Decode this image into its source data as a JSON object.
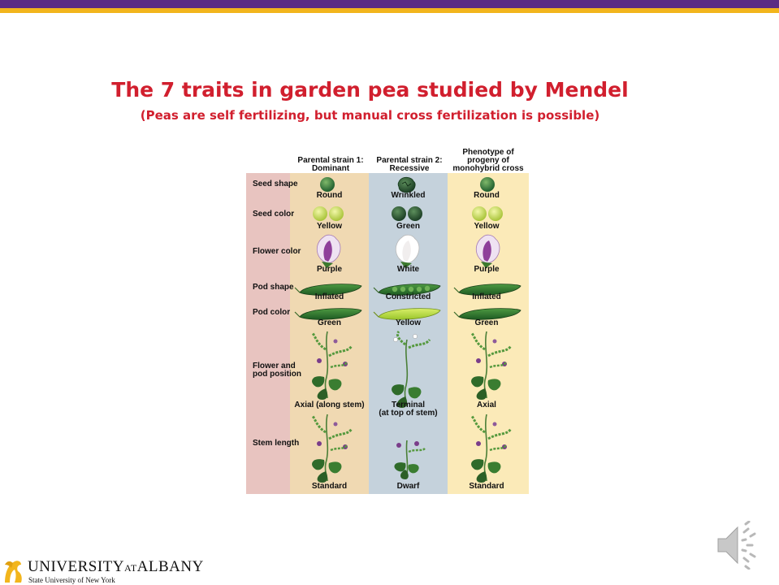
{
  "slide": {
    "title": "The 7 traits in garden pea studied by Mendel",
    "subtitle": "(Peas are self fertilizing, but manual cross fertilization is possible)"
  },
  "figure": {
    "headers": {
      "parental1": [
        "Parental strain 1:",
        "Dominant"
      ],
      "parental2": [
        "Parental strain 2:",
        "Recessive"
      ],
      "progeny": [
        "Phenotype of",
        "progeny of",
        "monohybrid cross"
      ]
    },
    "traits": [
      {
        "name": [
          "Seed shape"
        ],
        "dominant": [
          "Round"
        ],
        "recessive": [
          "Wrinkled"
        ],
        "progeny": [
          "Round"
        ]
      },
      {
        "name": [
          "Seed color"
        ],
        "dominant": [
          "Yellow"
        ],
        "recessive": [
          "Green"
        ],
        "progeny": [
          "Yellow"
        ]
      },
      {
        "name": [
          "Flower color"
        ],
        "dominant": [
          "Purple"
        ],
        "recessive": [
          "White"
        ],
        "progeny": [
          "Purple"
        ]
      },
      {
        "name": [
          "Pod shape"
        ],
        "dominant": [
          "Inflated"
        ],
        "recessive": [
          "Constricted"
        ],
        "progeny": [
          "Inflated"
        ]
      },
      {
        "name": [
          "Pod color"
        ],
        "dominant": [
          "Green"
        ],
        "recessive": [
          "Yellow"
        ],
        "progeny": [
          "Green"
        ]
      },
      {
        "name": [
          "Flower and",
          "pod position"
        ],
        "dominant": [
          "Axial (along stem)"
        ],
        "recessive": [
          "Terminal",
          "(at top of stem)"
        ],
        "progeny": [
          "Axial"
        ]
      },
      {
        "name": [
          "Stem length"
        ],
        "dominant": [
          "Standard"
        ],
        "recessive": [
          "Dwarf"
        ],
        "progeny": [
          "Standard"
        ]
      }
    ],
    "colors": {
      "trait_col": "#e8c4c0",
      "dominant_col": "#f0d9b2",
      "recessive_col": "#c5d2dc",
      "progeny_col": "#fbeab8"
    }
  },
  "footer": {
    "logo_main": "UNIVERSITY",
    "logo_at": "AT",
    "logo_albany": "ALBANY",
    "logo_sub": "State University of New York",
    "logo_icon": "minerva-icon",
    "audio_icon": "speaker-icon"
  },
  "theme": {
    "purple": "#5b2c83",
    "gold": "#f2b51c",
    "title_red": "#d11f2e"
  }
}
